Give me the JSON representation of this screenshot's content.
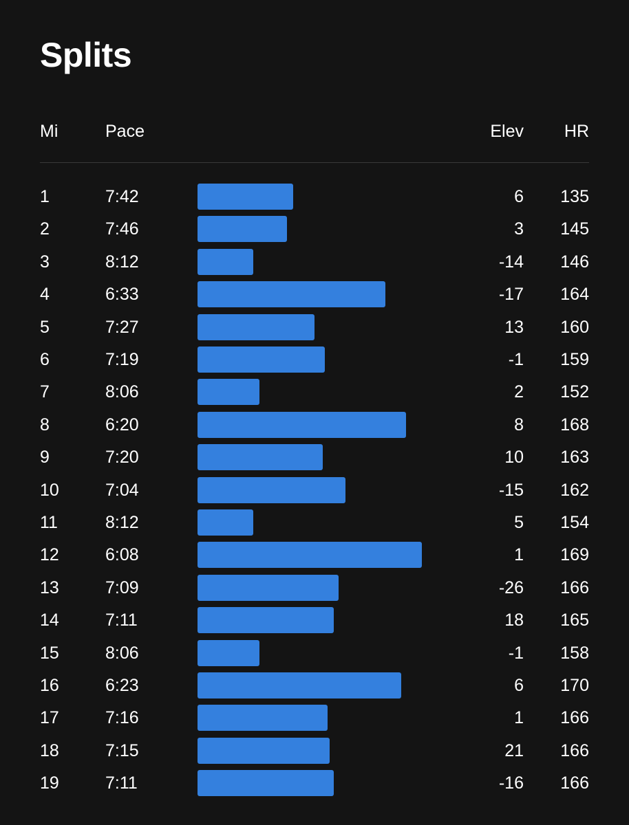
{
  "title": "Splits",
  "headers": {
    "mi": "Mi",
    "pace": "Pace",
    "elev": "Elev",
    "hr": "HR"
  },
  "bar_color": "#3480de",
  "splits": [
    {
      "mi": "1",
      "pace": "7:42",
      "elev": "6",
      "hr": "135",
      "bar_fraction": 0.427
    },
    {
      "mi": "2",
      "pace": "7:46",
      "elev": "3",
      "hr": "145",
      "bar_fraction": 0.399
    },
    {
      "mi": "3",
      "pace": "8:12",
      "elev": "-14",
      "hr": "146",
      "bar_fraction": 0.248
    },
    {
      "mi": "4",
      "pace": "6:33",
      "elev": "-17",
      "hr": "164",
      "bar_fraction": 0.838
    },
    {
      "mi": "5",
      "pace": "7:27",
      "elev": "13",
      "hr": "160",
      "bar_fraction": 0.52
    },
    {
      "mi": "6",
      "pace": "7:19",
      "elev": "-1",
      "hr": "159",
      "bar_fraction": 0.568
    },
    {
      "mi": "7",
      "pace": "8:06",
      "elev": "2",
      "hr": "152",
      "bar_fraction": 0.276
    },
    {
      "mi": "8",
      "pace": "6:20",
      "elev": "8",
      "hr": "168",
      "bar_fraction": 0.929
    },
    {
      "mi": "9",
      "pace": "7:20",
      "elev": "10",
      "hr": "163",
      "bar_fraction": 0.558
    },
    {
      "mi": "10",
      "pace": "7:04",
      "elev": "-15",
      "hr": "162",
      "bar_fraction": 0.66
    },
    {
      "mi": "11",
      "pace": "8:12",
      "elev": "5",
      "hr": "154",
      "bar_fraction": 0.248
    },
    {
      "mi": "12",
      "pace": "6:08",
      "elev": "1",
      "hr": "169",
      "bar_fraction": 1.0
    },
    {
      "mi": "13",
      "pace": "7:09",
      "elev": "-26",
      "hr": "166",
      "bar_fraction": 0.629
    },
    {
      "mi": "14",
      "pace": "7:11",
      "elev": "18",
      "hr": "165",
      "bar_fraction": 0.608
    },
    {
      "mi": "15",
      "pace": "8:06",
      "elev": "-1",
      "hr": "158",
      "bar_fraction": 0.276
    },
    {
      "mi": "16",
      "pace": "6:23",
      "elev": "6",
      "hr": "170",
      "bar_fraction": 0.908
    },
    {
      "mi": "17",
      "pace": "7:16",
      "elev": "1",
      "hr": "166",
      "bar_fraction": 0.58
    },
    {
      "mi": "18",
      "pace": "7:15",
      "elev": "21",
      "hr": "166",
      "bar_fraction": 0.589
    },
    {
      "mi": "19",
      "pace": "7:11",
      "elev": "-16",
      "hr": "166",
      "bar_fraction": 0.608
    }
  ]
}
